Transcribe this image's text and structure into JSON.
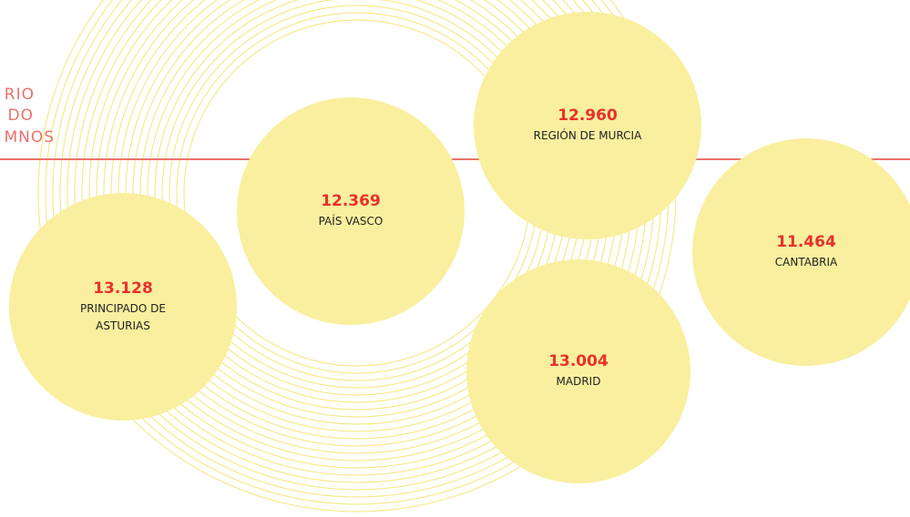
{
  "side_text": [
    "RIO",
    "DO",
    "MNOS"
  ],
  "items": [
    {
      "value": "13.128",
      "label": "PRINCIPADO DE ASTURIAS"
    },
    {
      "value": "12.369",
      "label": "PAÍS VASCO"
    },
    {
      "value": "12.960",
      "label": "REGIÓN DE MURCIA"
    },
    {
      "value": "13.004",
      "label": "MADRID"
    },
    {
      "value": "11.464",
      "label": "CANTABRIA"
    }
  ]
}
